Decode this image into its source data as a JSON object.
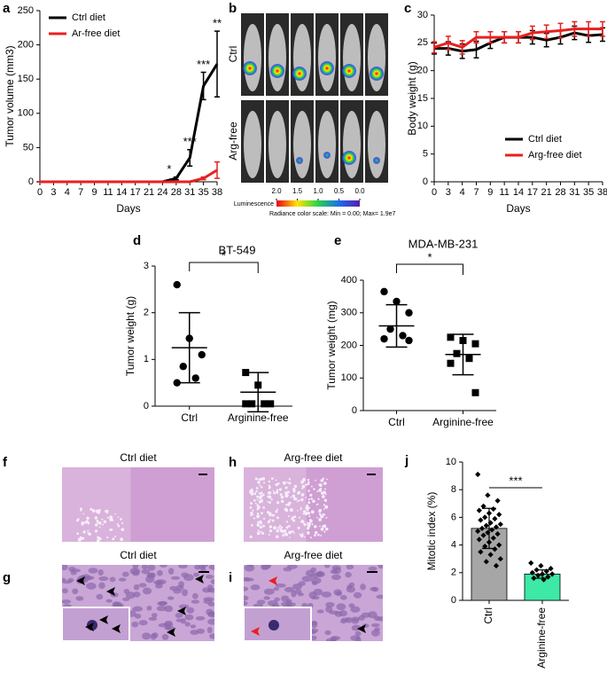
{
  "chart_data": [
    {
      "type": "line",
      "panel": "a",
      "ylabel": "Tumor volume (mm3)",
      "xlabel": "Days",
      "categories": [
        "0",
        "3",
        "4",
        "7",
        "9",
        "11",
        "14",
        "17",
        "21",
        "24",
        "28",
        "31",
        "35",
        "38"
      ],
      "ylim": [
        0,
        250
      ],
      "yticks": [
        0,
        50,
        100,
        150,
        200,
        250
      ],
      "legend": "upper left",
      "series": [
        {
          "name": "Ctrl diet",
          "color": "#000000",
          "values": [
            0,
            0,
            0,
            0,
            0,
            0,
            0,
            0,
            0,
            0,
            5,
            35,
            140,
            172
          ],
          "errors": [
            0,
            0,
            0,
            0,
            0,
            0,
            0,
            0,
            0,
            0,
            2,
            12,
            20,
            48
          ]
        },
        {
          "name": "Ar-free diet",
          "color": "#e8201f",
          "values": [
            0,
            0,
            0,
            0,
            0,
            0,
            0,
            0,
            0,
            0,
            0,
            0,
            5,
            17
          ],
          "errors": [
            0,
            0,
            0,
            0,
            0,
            0,
            0,
            0,
            0,
            0,
            0,
            0,
            2,
            12
          ]
        }
      ],
      "significance": [
        null,
        null,
        null,
        null,
        null,
        null,
        null,
        null,
        null,
        null,
        "*",
        "***",
        "***",
        "**"
      ]
    },
    {
      "type": "line",
      "panel": "c",
      "ylabel": "Body weight (g)",
      "xlabel": "Days",
      "categories": [
        "0",
        "3",
        "4",
        "7",
        "9",
        "11",
        "14",
        "17",
        "21",
        "28",
        "31",
        "35",
        "38"
      ],
      "ylim": [
        0,
        30
      ],
      "yticks": [
        0,
        5,
        10,
        15,
        20,
        25,
        30
      ],
      "legend": "lower right",
      "series": [
        {
          "name": "Ctrl diet",
          "color": "#000000",
          "values": [
            24,
            24,
            23.5,
            23.8,
            25,
            26,
            26,
            26,
            25.5,
            26,
            26.8,
            26.3,
            26.5
          ],
          "errors": [
            1,
            1.2,
            1.3,
            1.5,
            1,
            1,
            1,
            1.2,
            1.2,
            1.2,
            1.2,
            1.2,
            1.2
          ]
        },
        {
          "name": "Arg-free diet",
          "color": "#e8201f",
          "values": [
            24.2,
            25,
            24.2,
            26,
            26,
            26,
            26,
            26.8,
            27,
            27.2,
            27.5,
            27.5,
            27.5
          ],
          "errors": [
            1,
            1.2,
            1.2,
            1,
            1,
            1,
            1,
            1.2,
            1.2,
            1.3,
            1.3,
            1.3,
            1.3
          ]
        }
      ]
    },
    {
      "type": "dot",
      "panel": "d",
      "title": "BT-549",
      "ylabel": "Tumor weight (g)",
      "categories": [
        "Ctrl",
        "Arginine-free"
      ],
      "ylim": [
        0,
        3
      ],
      "yticks": [
        0,
        1,
        2,
        3
      ],
      "points": [
        [
          2.6,
          1.45,
          1.1,
          0.85,
          0.6,
          0.5
        ],
        [
          0.72,
          0.45,
          0.05,
          0.05,
          0.05,
          0.05
        ]
      ],
      "means": [
        1.25,
        0.3
      ],
      "sd": [
        0.75,
        0.42
      ],
      "markers": [
        "circle",
        "square"
      ],
      "significance": "*"
    },
    {
      "type": "dot",
      "panel": "e",
      "title": "MDA-MB-231",
      "ylabel": "Tumor weight (mg)",
      "categories": [
        "Ctrl",
        "Arginine-free"
      ],
      "ylim": [
        0,
        400
      ],
      "yticks": [
        0,
        100,
        200,
        300,
        400
      ],
      "points": [
        [
          365,
          335,
          300,
          250,
          230,
          220,
          215
        ],
        [
          225,
          215,
          205,
          175,
          160,
          145,
          55
        ]
      ],
      "means": [
        260,
        172
      ],
      "sd": [
        65,
        62
      ],
      "markers": [
        "circle",
        "square"
      ],
      "significance": "*"
    },
    {
      "type": "bar",
      "panel": "j",
      "ylabel": "Mitotic index (%)",
      "categories": [
        "Ctrl",
        "Arginine-free"
      ],
      "ylim": [
        0,
        10
      ],
      "yticks": [
        0,
        2,
        4,
        6,
        8,
        10
      ],
      "values": [
        5.2,
        1.9
      ],
      "errors": [
        1.45,
        0.3
      ],
      "colors": [
        "#a6a6a6",
        "#3ee8a6"
      ],
      "points": [
        [
          9.1,
          7.6,
          7.2,
          6.8,
          6.6,
          6.5,
          6.3,
          6.2,
          6.0,
          5.9,
          5.8,
          5.6,
          5.5,
          5.4,
          5.3,
          5.2,
          5.1,
          5.0,
          4.9,
          4.8,
          4.7,
          4.5,
          4.4,
          4.2,
          4.0,
          3.9,
          3.7,
          3.5,
          3.3,
          3.0,
          2.8,
          2.5
        ],
        [
          2.7,
          2.5,
          2.3,
          2.2,
          2.1,
          2.0,
          1.9,
          1.9,
          1.8,
          1.7,
          1.6,
          1.5
        ]
      ],
      "significance": "***"
    }
  ],
  "images": [
    {
      "panel": "b",
      "row_labels": [
        "Ctrl",
        "Arg-free"
      ],
      "colorbar_label": "Luminescence",
      "colorbar_ticks": [
        {
          "value": 2,
          "label": "2.0"
        },
        {
          "value": 1.5,
          "label": "1.5"
        },
        {
          "value": 1,
          "label": "1.0"
        },
        {
          "value": 0.5,
          "label": "0.5"
        },
        {
          "value": 0,
          "label": "0.0"
        }
      ],
      "scale_note": "Radiance color scale: Min = 0.00; Max= 1.9e7"
    },
    {
      "panel": "f",
      "title": "Ctrl diet"
    },
    {
      "panel": "h",
      "title": "Arg-free diet"
    },
    {
      "panel": "g",
      "title": "Ctrl diet"
    },
    {
      "panel": "i",
      "title": "Arg-free diet"
    }
  ]
}
